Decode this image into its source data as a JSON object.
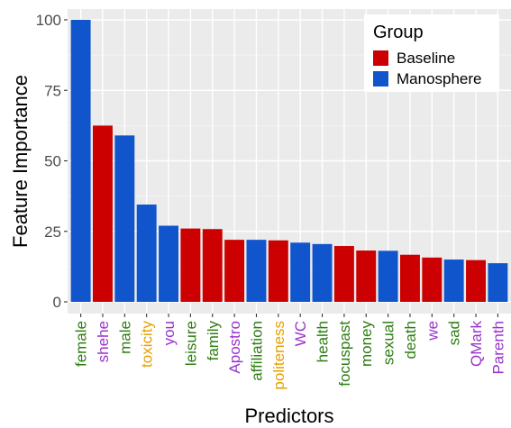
{
  "chart_data": {
    "type": "bar",
    "title": "",
    "xlabel": "Predictors",
    "ylabel": "Feature Importance",
    "ylim": [
      0,
      100
    ],
    "yticks": [
      0,
      25,
      50,
      75,
      100
    ],
    "grid": true,
    "legend": {
      "title": "Group",
      "placement": "top-right",
      "entries": [
        {
          "name": "Baseline",
          "color": "#CC0000"
        },
        {
          "name": "Manosphere",
          "color": "#1155CC"
        }
      ]
    },
    "label_colors": {
      "green": "#2E7D12",
      "purple": "#9933CC",
      "orange": "#E69F00"
    },
    "categories": [
      "female",
      "shehe",
      "male",
      "toxicity",
      "you",
      "leisure",
      "family",
      "Apostro",
      "affiliation",
      "politeness",
      "WC",
      "health",
      "focuspast",
      "money",
      "sexual",
      "death",
      "we",
      "sad",
      "QMark",
      "Parenth"
    ],
    "values": [
      100,
      62.5,
      59,
      34.5,
      27,
      26,
      25.8,
      22,
      22,
      21.8,
      21,
      20.5,
      19.8,
      18.2,
      18.1,
      16.7,
      15.7,
      15,
      14.8,
      13.7
    ],
    "groups": [
      "Manosphere",
      "Baseline",
      "Manosphere",
      "Manosphere",
      "Manosphere",
      "Baseline",
      "Baseline",
      "Baseline",
      "Manosphere",
      "Baseline",
      "Manosphere",
      "Manosphere",
      "Baseline",
      "Baseline",
      "Manosphere",
      "Baseline",
      "Baseline",
      "Manosphere",
      "Baseline",
      "Manosphere"
    ],
    "label_color_keys": [
      "green",
      "purple",
      "green",
      "orange",
      "purple",
      "green",
      "green",
      "purple",
      "green",
      "orange",
      "purple",
      "green",
      "green",
      "green",
      "green",
      "green",
      "purple",
      "green",
      "purple",
      "purple"
    ]
  }
}
